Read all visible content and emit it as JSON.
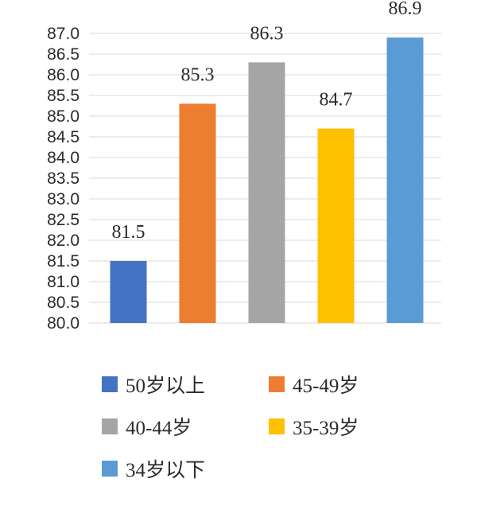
{
  "chart_data": {
    "type": "bar",
    "categories": [
      "50岁以上",
      "45-49岁",
      "40-44岁",
      "35-39岁",
      "34岁以下"
    ],
    "values": [
      81.5,
      85.3,
      86.3,
      84.7,
      86.9
    ],
    "data_labels": [
      "81.5",
      "85.3",
      "86.3",
      "84.7",
      "86.9"
    ],
    "colors": [
      "#4472C4",
      "#ED7D31",
      "#A5A5A5",
      "#FFC000",
      "#5B9BD5"
    ],
    "ylim": [
      80.0,
      87.0
    ],
    "yticks": [
      "80.0",
      "80.5",
      "81.0",
      "81.5",
      "82.0",
      "82.5",
      "83.0",
      "83.5",
      "84.0",
      "84.5",
      "85.0",
      "85.5",
      "86.0",
      "86.5",
      "87.0"
    ],
    "grid": true,
    "legend_placement": "bottom",
    "title": "",
    "xlabel": "",
    "ylabel": ""
  }
}
